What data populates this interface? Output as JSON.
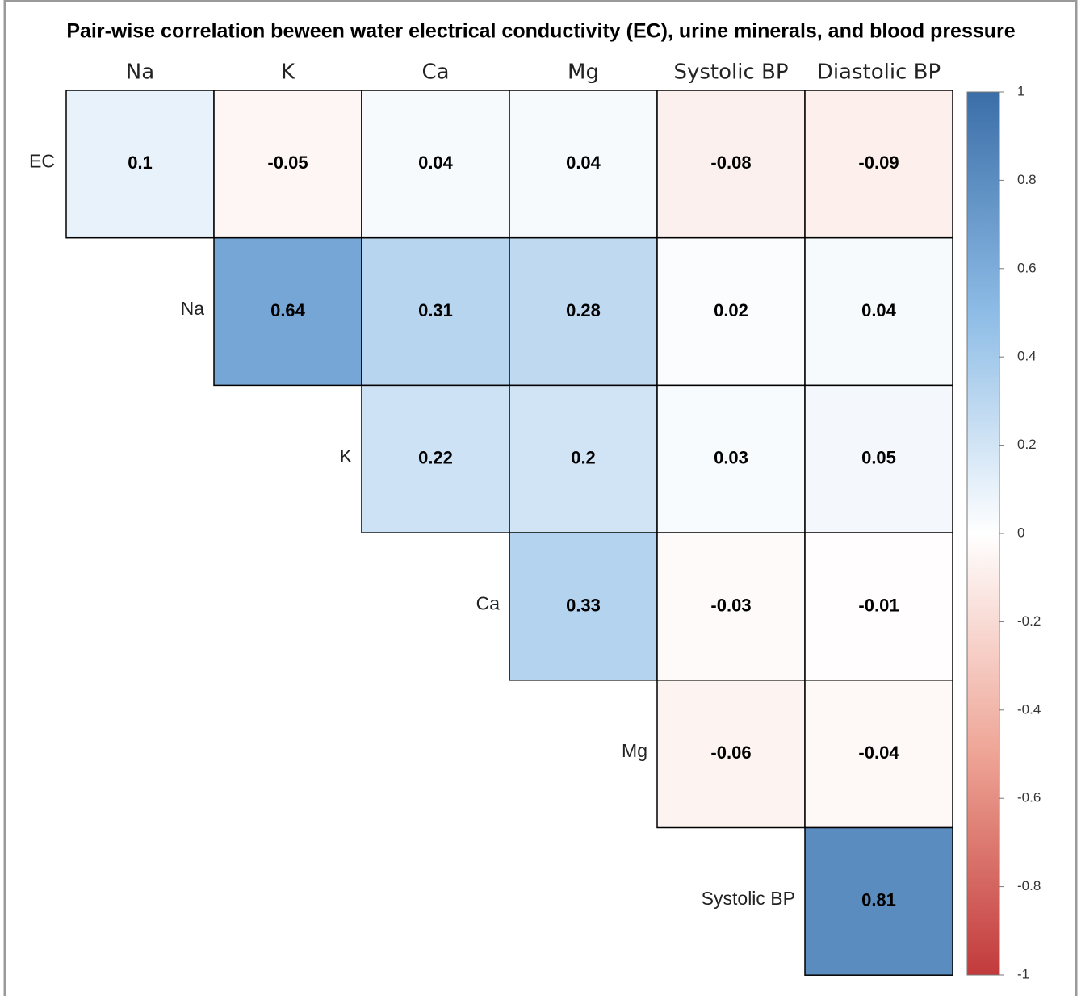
{
  "chart_data": {
    "type": "heatmap",
    "title": "Pair-wise correlation beween water electrical conductivity (EC), urine minerals, and blood pressure",
    "x_categories": [
      "Na",
      "K",
      "Ca",
      "Mg",
      "Systolic BP",
      "Diastolic BP"
    ],
    "y_categories": [
      "EC",
      "Na",
      "K",
      "Ca",
      "Mg",
      "Systolic BP"
    ],
    "values": [
      [
        0.1,
        -0.05,
        0.04,
        0.04,
        -0.08,
        -0.09
      ],
      [
        null,
        0.64,
        0.31,
        0.28,
        0.02,
        0.04
      ],
      [
        null,
        null,
        0.22,
        0.2,
        0.03,
        0.05
      ],
      [
        null,
        null,
        null,
        0.33,
        -0.03,
        -0.01
      ],
      [
        null,
        null,
        null,
        null,
        -0.06,
        -0.04
      ],
      [
        null,
        null,
        null,
        null,
        null,
        0.81
      ]
    ],
    "clim": [
      -1,
      1
    ],
    "cticks": [
      1,
      0.8,
      0.6,
      0.4,
      0.2,
      0,
      -0.2,
      -0.4,
      -0.6,
      -0.8,
      -1
    ],
    "colorscale": [
      "#c23a3c",
      "#eea495",
      "#ffffff",
      "#8dbce6",
      "#3b6ea8"
    ]
  }
}
